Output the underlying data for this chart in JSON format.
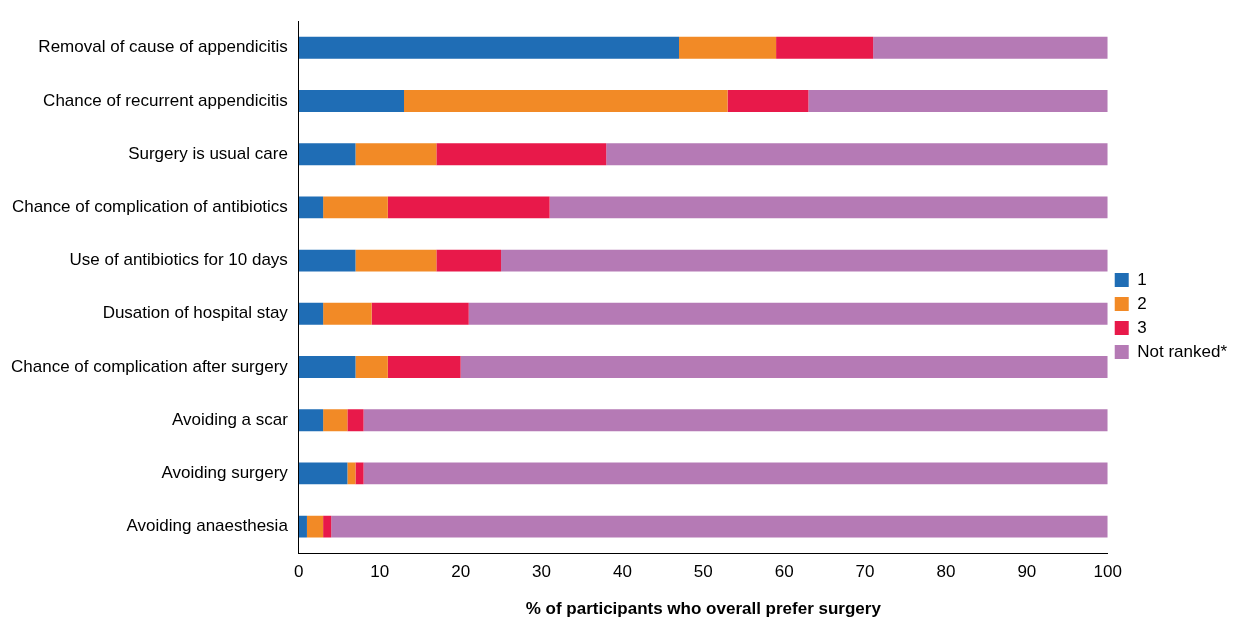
{
  "chart_data": {
    "type": "bar",
    "orientation": "horizontal",
    "stacked": true,
    "categories": [
      "Removal of cause of appendicitis",
      "Chance of recurrent appendicitis",
      "Surgery is usual care",
      "Chance of complication of antibiotics",
      "Use of antibiotics for 10 days",
      "Dusation of hospital stay",
      "Chance of complication after surgery",
      "Avoiding a scar",
      "Avoiding surgery",
      "Avoiding anaesthesia"
    ],
    "series": [
      {
        "name": "1",
        "color": "#1f6db5",
        "values": [
          47,
          13,
          7,
          3,
          7,
          3,
          7,
          3,
          6,
          1
        ]
      },
      {
        "name": "2",
        "color": "#f28a26",
        "values": [
          12,
          40,
          10,
          8,
          10,
          6,
          4,
          3,
          1,
          2
        ]
      },
      {
        "name": "3",
        "color": "#e8194a",
        "values": [
          12,
          10,
          21,
          20,
          8,
          12,
          9,
          2,
          1,
          1
        ]
      },
      {
        "name": "Not ranked*",
        "color": "#b57ab5",
        "values": [
          29,
          37,
          62,
          69,
          75,
          79,
          80,
          92,
          92,
          96
        ]
      }
    ],
    "xlim": [
      0,
      100
    ],
    "xticks": [
      0,
      10,
      20,
      30,
      40,
      50,
      60,
      70,
      80,
      90,
      100
    ],
    "xlabel": "% of participants who overall prefer surgery",
    "grid": false,
    "legend": "right"
  }
}
